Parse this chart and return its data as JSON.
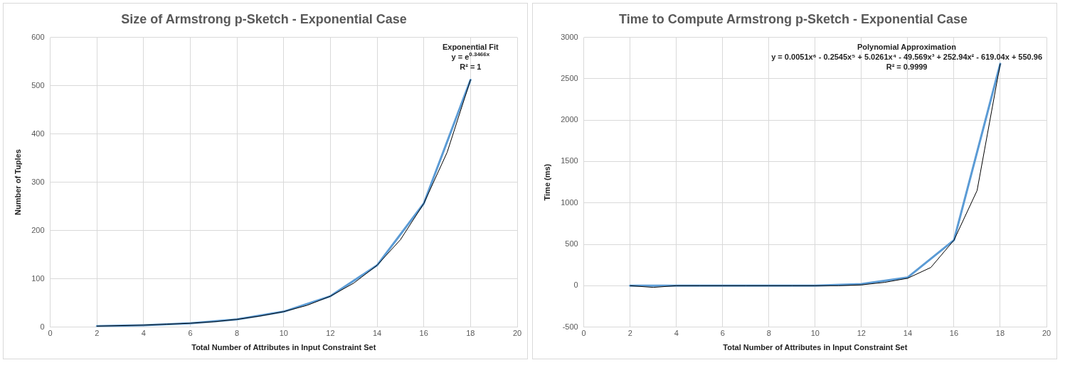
{
  "chart_data": [
    {
      "type": "line",
      "title": "Size of Armstrong p-Sketch - Exponential Case",
      "xlabel": "Total Number of Attributes in Input Constraint Set",
      "ylabel": "Number of Tuples",
      "xlim": [
        0,
        20
      ],
      "xticks": [
        0,
        2,
        4,
        6,
        8,
        10,
        12,
        14,
        16,
        18,
        20
      ],
      "ylim": [
        0,
        600
      ],
      "yticks": [
        0,
        100,
        200,
        300,
        400,
        500,
        600
      ],
      "grid": true,
      "marker": "none",
      "line_style": "solid",
      "annotations": [
        "Exponential Fit",
        "y = e$^{0.3466x}$",
        "R² = 1"
      ],
      "series": [
        {
          "color": "#5b9bd5",
          "x": [
            2,
            4,
            6,
            8,
            10,
            12,
            14,
            16,
            18
          ],
          "values": [
            2,
            4,
            8,
            16,
            32,
            64,
            128,
            256,
            512
          ]
        },
        {
          "type": "line",
          "color": "#000000",
          "x": [
            2,
            3,
            4,
            5,
            6,
            7,
            8,
            9,
            10,
            11,
            12,
            13,
            14,
            15,
            16,
            17,
            18
          ],
          "values": [
            2,
            3,
            4,
            6,
            8,
            11,
            16,
            23,
            32,
            45,
            64,
            91,
            128,
            181,
            256,
            362,
            512
          ]
        }
      ]
    },
    {
      "type": "line",
      "title": "Time to Compute Armstrong p-Sketch - Exponential Case",
      "xlabel": "Total Number of Attributes in Input Constraint Set",
      "ylabel": "Time (ms)",
      "xlim": [
        0,
        20
      ],
      "xticks": [
        0,
        2,
        4,
        6,
        8,
        10,
        12,
        14,
        16,
        18,
        20
      ],
      "ylim": [
        -500,
        3000
      ],
      "yticks": [
        -500,
        0,
        500,
        1000,
        1500,
        2000,
        2500,
        3000
      ],
      "grid": true,
      "marker": "none",
      "line_style": "solid",
      "annotations": [
        "Polynomial Approximation",
        "y = 0.0051x⁶ - 0.2545x⁵ + 5.0261x⁴ - 49.569x³ + 252.94x² - 619.04x + 550.96",
        "R² = 0.9999"
      ],
      "series": [
        {
          "color": "#5b9bd5",
          "x": [
            2,
            4,
            6,
            8,
            10,
            12,
            14,
            16,
            18
          ],
          "values": [
            0,
            0,
            0,
            0,
            0,
            20,
            100,
            550,
            2680
          ]
        },
        {
          "type": "line",
          "color": "#000000",
          "x": [
            2,
            3,
            4,
            5,
            6,
            7,
            8,
            9,
            10,
            11,
            12,
            13,
            14,
            15,
            16,
            17,
            18
          ],
          "values": [
            0,
            -20,
            0,
            0,
            0,
            0,
            0,
            0,
            0,
            0,
            10,
            40,
            90,
            220,
            550,
            1150,
            2680
          ]
        }
      ]
    }
  ]
}
